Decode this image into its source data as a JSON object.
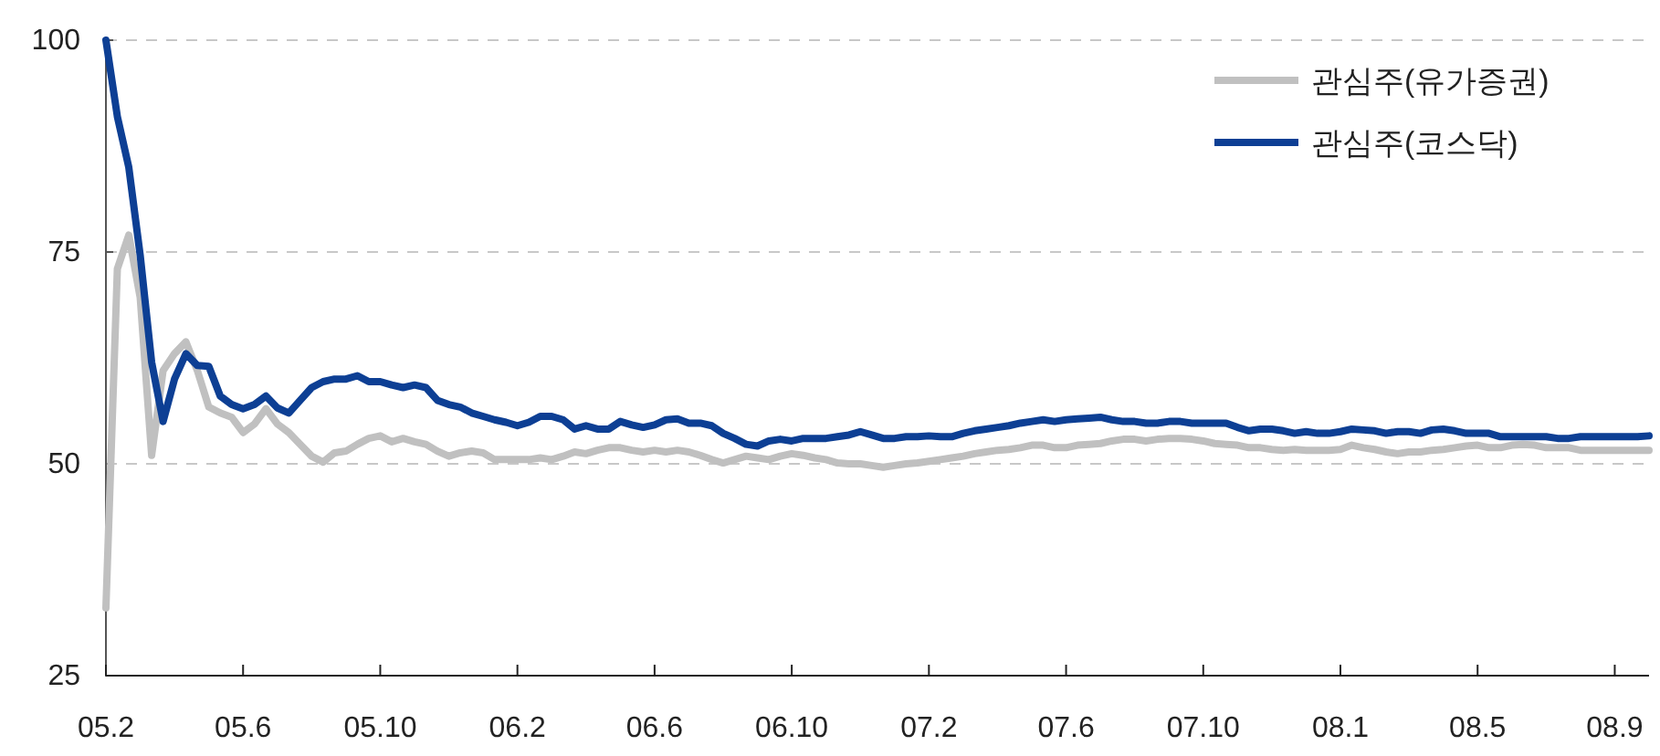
{
  "chart_data": {
    "type": "line",
    "categories": [
      "05.2",
      null,
      null,
      null,
      null,
      null,
      null,
      null,
      null,
      null,
      null,
      null,
      "05.6",
      null,
      null,
      null,
      null,
      null,
      null,
      null,
      null,
      null,
      null,
      null,
      "05.10",
      null,
      null,
      null,
      null,
      null,
      null,
      null,
      null,
      null,
      null,
      null,
      "06.2",
      null,
      null,
      null,
      null,
      null,
      null,
      null,
      null,
      null,
      null,
      null,
      "06.6",
      null,
      null,
      null,
      null,
      null,
      null,
      null,
      null,
      null,
      null,
      null,
      "06.10",
      null,
      null,
      null,
      null,
      null,
      null,
      null,
      null,
      null,
      null,
      null,
      "07.2",
      null,
      null,
      null,
      null,
      null,
      null,
      null,
      null,
      null,
      null,
      null,
      "07.6",
      null,
      null,
      null,
      null,
      null,
      null,
      null,
      null,
      null,
      null,
      null,
      "07.10",
      null,
      null,
      null,
      null,
      null,
      null,
      null,
      null,
      null,
      null,
      null,
      "08.1",
      null,
      null,
      null,
      null,
      null,
      null,
      null,
      null,
      null,
      null,
      null,
      "08.5",
      null,
      null,
      null,
      null,
      null,
      null,
      null,
      null,
      null,
      null,
      null,
      "08.9",
      null,
      null,
      null
    ],
    "series": [
      {
        "name": "관심주(유가증권)",
        "color": "#c0c0c0",
        "values": [
          33,
          73,
          77,
          69.6,
          51,
          61,
          63,
          64.4,
          61,
          56.7,
          56,
          55.5,
          53.7,
          54.7,
          56.5,
          54.7,
          53.7,
          52.3,
          50.9,
          50.2,
          51.3,
          51.5,
          52.3,
          53,
          53.3,
          52.6,
          53,
          52.6,
          52.3,
          51.5,
          50.9,
          51.3,
          51.5,
          51.3,
          50.5,
          50.5,
          50.5,
          50.5,
          50.7,
          50.5,
          50.9,
          51.4,
          51.2,
          51.6,
          51.9,
          51.9,
          51.6,
          51.4,
          51.6,
          51.4,
          51.6,
          51.4,
          51,
          50.5,
          50.1,
          50.5,
          50.9,
          50.7,
          50.5,
          50.9,
          51.2,
          51,
          50.7,
          50.5,
          50.1,
          50,
          50,
          49.8,
          49.6,
          49.8,
          50,
          50.1,
          50.3,
          50.5,
          50.7,
          50.9,
          51.2,
          51.4,
          51.6,
          51.7,
          51.9,
          52.2,
          52.2,
          51.9,
          51.9,
          52.2,
          52.3,
          52.4,
          52.7,
          52.9,
          52.9,
          52.7,
          52.9,
          53,
          53,
          52.9,
          52.7,
          52.4,
          52.3,
          52.2,
          51.9,
          51.9,
          51.7,
          51.6,
          51.7,
          51.6,
          51.6,
          51.6,
          51.7,
          52.2,
          51.9,
          51.7,
          51.4,
          51.2,
          51.4,
          51.4,
          51.6,
          51.7,
          51.9,
          52.1,
          52.2,
          51.9,
          51.9,
          52.2,
          52.3,
          52.2,
          51.9,
          51.9,
          51.9,
          51.6,
          51.6,
          51.6,
          51.6,
          51.6,
          51.6,
          51.6
        ]
      },
      {
        "name": "관심주(코스닥)",
        "color": "#0d3f94",
        "values": [
          100,
          91,
          85,
          74.6,
          62,
          55,
          60,
          63,
          61.6,
          61.5,
          58,
          57,
          56.5,
          57,
          58,
          56.6,
          56,
          57.5,
          59,
          59.7,
          60,
          60,
          60.4,
          59.7,
          59.7,
          59.3,
          59,
          59.3,
          59,
          57.5,
          57,
          56.7,
          56,
          55.6,
          55.2,
          54.9,
          54.5,
          54.9,
          55.6,
          55.6,
          55.2,
          54.1,
          54.5,
          54.1,
          54.1,
          55,
          54.6,
          54.3,
          54.6,
          55.2,
          55.3,
          54.8,
          54.8,
          54.5,
          53.6,
          53,
          52.3,
          52.1,
          52.7,
          52.9,
          52.7,
          53,
          53,
          53,
          53.2,
          53.4,
          53.8,
          53.4,
          53,
          53,
          53.2,
          53.2,
          53.3,
          53.2,
          53.2,
          53.6,
          53.9,
          54.1,
          54.3,
          54.5,
          54.8,
          55,
          55.2,
          55,
          55.2,
          55.3,
          55.4,
          55.5,
          55.2,
          55,
          55,
          54.8,
          54.8,
          55,
          55,
          54.8,
          54.8,
          54.8,
          54.8,
          54.3,
          53.9,
          54.1,
          54.1,
          53.9,
          53.6,
          53.8,
          53.6,
          53.6,
          53.8,
          54.1,
          54,
          53.9,
          53.6,
          53.8,
          53.8,
          53.6,
          54,
          54.1,
          53.9,
          53.6,
          53.6,
          53.6,
          53.2,
          53.2,
          53.2,
          53.2,
          53.2,
          53,
          53,
          53.2,
          53.2,
          53.2,
          53.2,
          53.2,
          53.2,
          53.3
        ]
      }
    ],
    "ylim": [
      25,
      100
    ],
    "yticks": [
      25,
      50,
      75,
      100
    ],
    "grid": "y",
    "legend": "top right"
  }
}
